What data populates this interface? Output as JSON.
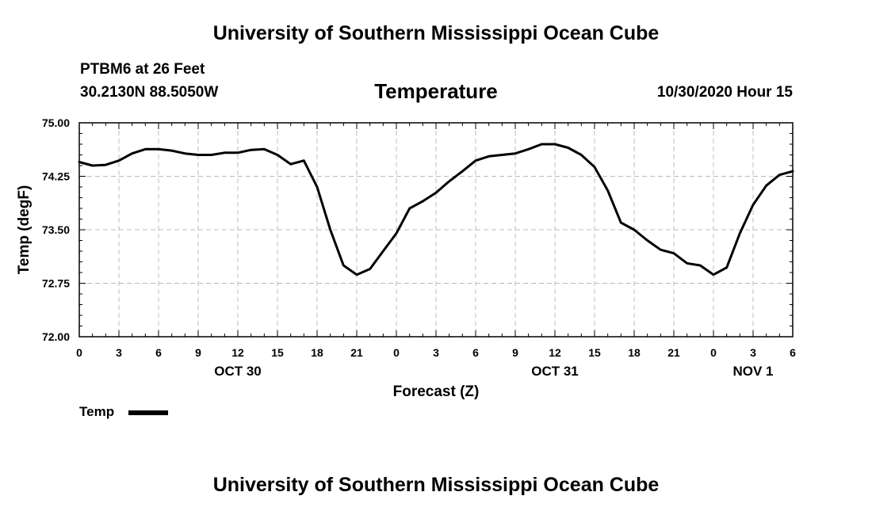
{
  "header": {
    "title": "University of Southern Mississippi Ocean Cube",
    "station": "PTBM6 at 26 Feet",
    "coords": "30.2130N 88.5050W",
    "timestamp": "10/30/2020 Hour 15"
  },
  "footer": {
    "title": "University of Southern Mississippi Ocean Cube"
  },
  "chart_data": {
    "type": "line",
    "title": "Temperature",
    "xlabel": "Forecast (Z)",
    "ylabel": "Temp (degF)",
    "xlim": [
      0,
      54
    ],
    "ylim": [
      72.0,
      75.0
    ],
    "x_ticks": [
      0,
      3,
      6,
      9,
      12,
      15,
      18,
      21,
      24,
      27,
      30,
      33,
      36,
      39,
      42,
      45,
      48,
      51,
      54
    ],
    "x_tick_labels": [
      "0",
      "3",
      "6",
      "9",
      "12",
      "15",
      "18",
      "21",
      "0",
      "3",
      "6",
      "9",
      "12",
      "15",
      "18",
      "21",
      "0",
      "3",
      "6"
    ],
    "day_labels": [
      {
        "label": "OCT 30",
        "x": 12
      },
      {
        "label": "OCT 31",
        "x": 36
      },
      {
        "label": "NOV 1",
        "x": 51
      }
    ],
    "y_ticks": [
      72.0,
      72.75,
      73.5,
      74.25,
      75.0
    ],
    "y_tick_labels": [
      "72.00",
      "72.75",
      "73.50",
      "74.25",
      "75.00"
    ],
    "grid": true,
    "legend": {
      "label": "Temp",
      "position": "bottom-left"
    },
    "series": [
      {
        "name": "Temp",
        "color": "#000000",
        "x": [
          0,
          1,
          2,
          3,
          4,
          5,
          6,
          7,
          8,
          9,
          10,
          11,
          12,
          13,
          14,
          15,
          16,
          17,
          18,
          19,
          20,
          21,
          22,
          23,
          24,
          25,
          26,
          27,
          28,
          29,
          30,
          31,
          32,
          33,
          34,
          35,
          36,
          37,
          38,
          39,
          40,
          41,
          42,
          43,
          44,
          45,
          46,
          47,
          48,
          49,
          50,
          51,
          52,
          53,
          54
        ],
        "values": [
          74.45,
          74.4,
          74.41,
          74.47,
          74.57,
          74.63,
          74.63,
          74.61,
          74.57,
          74.55,
          74.55,
          74.58,
          74.58,
          74.62,
          74.63,
          74.55,
          74.42,
          74.47,
          74.1,
          73.5,
          73.0,
          72.87,
          72.95,
          73.2,
          73.45,
          73.8,
          73.9,
          74.02,
          74.18,
          74.32,
          74.47,
          74.53,
          74.55,
          74.57,
          74.63,
          74.7,
          74.7,
          74.65,
          74.55,
          74.38,
          74.05,
          73.6,
          73.5,
          73.35,
          73.22,
          73.17,
          73.03,
          73.0,
          72.87,
          72.97,
          73.45,
          73.85,
          74.12,
          74.27,
          74.32
        ]
      }
    ]
  }
}
